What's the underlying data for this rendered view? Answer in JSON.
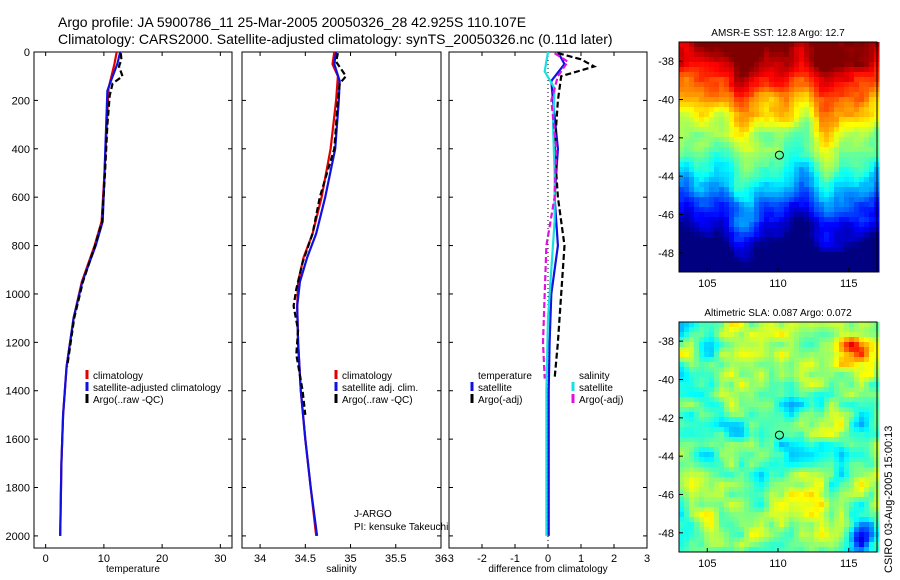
{
  "header": {
    "line1": "Argo profile: JA 5900786_11 25-Mar-2005 20050326_28 42.925S 110.107E",
    "line2": "Climatology: CARS2000. Satellite-adjusted climatology: synTS_20050326.nc (0.11d later)"
  },
  "credit": "CSIRO 03-Aug-2005 15:00:13",
  "colors": {
    "red": "#e00000",
    "blue": "#1010e0",
    "black": "#000000",
    "cyan": "#18e0e0",
    "magenta": "#e010e0"
  },
  "chart_data": [
    {
      "type": "line",
      "id": "temperature",
      "xlabel": "temperature",
      "ylabel": "",
      "xlim": [
        -2,
        32
      ],
      "ylim": [
        0,
        2050
      ],
      "y_inverted": true,
      "xticks": [
        0,
        10,
        20,
        30
      ],
      "yticks": [
        0,
        200,
        400,
        600,
        800,
        1000,
        1200,
        1400,
        1600,
        1800,
        2000
      ],
      "legend": {
        "position": "lower-right",
        "entries": [
          {
            "label": "climatology",
            "color": "#e00000"
          },
          {
            "label": "satellite-adjusted climatology",
            "color": "#1010e0"
          },
          {
            "label": "Argo(..raw -QC)",
            "color": "#000000"
          }
        ]
      },
      "series": [
        {
          "name": "climatology",
          "color": "#e00000",
          "dash": "",
          "points": [
            [
              12.2,
              0
            ],
            [
              11.8,
              50
            ],
            [
              11.1,
              120
            ],
            [
              10.8,
              150
            ],
            [
              10.5,
              300
            ],
            [
              10.1,
              500
            ],
            [
              9.6,
              700
            ],
            [
              8.4,
              800
            ],
            [
              6.2,
              950
            ],
            [
              4.8,
              1100
            ],
            [
              3.6,
              1300
            ],
            [
              3.0,
              1500
            ],
            [
              2.7,
              1700
            ],
            [
              2.5,
              2000
            ]
          ]
        },
        {
          "name": "satellite-adjusted climatology",
          "color": "#1010e0",
          "dash": "",
          "points": [
            [
              12.8,
              0
            ],
            [
              12.3,
              50
            ],
            [
              11.2,
              120
            ],
            [
              10.6,
              160
            ],
            [
              10.4,
              300
            ],
            [
              10.1,
              500
            ],
            [
              9.8,
              700
            ],
            [
              8.6,
              800
            ],
            [
              6.3,
              950
            ],
            [
              4.8,
              1100
            ],
            [
              3.6,
              1300
            ],
            [
              3.0,
              1500
            ],
            [
              2.7,
              1700
            ],
            [
              2.5,
              2000
            ]
          ]
        },
        {
          "name": "Argo(..raw -QC)",
          "color": "#000000",
          "dash": "6,3",
          "points": [
            [
              12.9,
              5
            ],
            [
              13.0,
              30
            ],
            [
              12.6,
              60
            ],
            [
              13.2,
              100
            ],
            [
              11.5,
              130
            ],
            [
              11.0,
              180
            ],
            [
              10.6,
              300
            ],
            [
              10.2,
              500
            ],
            [
              9.7,
              700
            ],
            [
              8.5,
              800
            ],
            [
              6.4,
              950
            ],
            [
              4.9,
              1100
            ],
            [
              3.7,
              1300
            ]
          ]
        }
      ]
    },
    {
      "type": "line",
      "id": "salinity",
      "xlabel": "salinity",
      "ylabel": "",
      "xlim": [
        33.8,
        36.0
      ],
      "ylim": [
        0,
        2050
      ],
      "y_inverted": true,
      "xticks": [
        34,
        34.5,
        35,
        35.5,
        36
      ],
      "xticklabels": [
        "34",
        "34.5",
        "35",
        "35.5",
        "36"
      ],
      "legend": {
        "position": "lower-right",
        "entries": [
          {
            "label": "climatology",
            "color": "#e00000"
          },
          {
            "label": "satellite adj. clim.",
            "color": "#1010e0"
          },
          {
            "label": "Argo(..raw -QC)",
            "color": "#000000"
          }
        ]
      },
      "annotations": [
        "J-ARGO",
        "PI: kensuke Takeuchi"
      ],
      "series": [
        {
          "name": "climatology",
          "color": "#e00000",
          "dash": "",
          "points": [
            [
              34.82,
              0
            ],
            [
              34.8,
              50
            ],
            [
              34.86,
              100
            ],
            [
              34.84,
              200
            ],
            [
              34.78,
              400
            ],
            [
              34.68,
              600
            ],
            [
              34.58,
              750
            ],
            [
              34.48,
              850
            ],
            [
              34.42,
              950
            ],
            [
              34.41,
              1050
            ],
            [
              34.42,
              1200
            ],
            [
              34.45,
              1400
            ],
            [
              34.5,
              1600
            ],
            [
              34.56,
              1800
            ],
            [
              34.62,
              2000
            ]
          ]
        },
        {
          "name": "satellite adj. clim.",
          "color": "#1010e0",
          "dash": "",
          "points": [
            [
              34.84,
              0
            ],
            [
              34.82,
              50
            ],
            [
              34.88,
              120
            ],
            [
              34.87,
              200
            ],
            [
              34.83,
              400
            ],
            [
              34.72,
              600
            ],
            [
              34.62,
              750
            ],
            [
              34.52,
              850
            ],
            [
              34.44,
              950
            ],
            [
              34.41,
              1050
            ],
            [
              34.42,
              1200
            ],
            [
              34.45,
              1400
            ],
            [
              34.5,
              1600
            ],
            [
              34.56,
              1800
            ],
            [
              34.63,
              2000
            ]
          ]
        },
        {
          "name": "Argo(..raw -QC)",
          "color": "#000000",
          "dash": "6,3",
          "points": [
            [
              34.86,
              5
            ],
            [
              34.84,
              40
            ],
            [
              34.95,
              100
            ],
            [
              34.88,
              130
            ],
            [
              34.86,
              200
            ],
            [
              34.82,
              400
            ],
            [
              34.66,
              600
            ],
            [
              34.58,
              750
            ],
            [
              34.47,
              870
            ],
            [
              34.4,
              980
            ],
            [
              34.37,
              1050
            ],
            [
              34.42,
              1150
            ],
            [
              34.4,
              1250
            ],
            [
              34.47,
              1400
            ],
            [
              34.5,
              1500
            ]
          ]
        }
      ]
    },
    {
      "type": "line",
      "id": "difference",
      "xlabel": "difference from climatology",
      "ylabel": "",
      "xlim": [
        -3,
        3
      ],
      "ylim": [
        0,
        2050
      ],
      "y_inverted": true,
      "xticks": [
        -3,
        -2,
        -1,
        0,
        1,
        2,
        3
      ],
      "legend": {
        "position": "lower-center",
        "entries": [
          {
            "label": "temperature",
            "color": ""
          },
          {
            "label": "satellite",
            "color": "#1010e0"
          },
          {
            "label": "Argo(-adj)",
            "color": "#000000"
          },
          {
            "label": "salinity",
            "color": ""
          },
          {
            "label": "satellite",
            "color": "#18e0e0"
          },
          {
            "label": "Argo(-adj)",
            "color": "#e010e0"
          }
        ]
      },
      "series": [
        {
          "name": "temperature satellite",
          "color": "#1010e0",
          "dash": "",
          "points": [
            [
              0.3,
              0
            ],
            [
              0.5,
              50
            ],
            [
              0.1,
              120
            ],
            [
              0.15,
              200
            ],
            [
              0.3,
              400
            ],
            [
              0.2,
              600
            ],
            [
              0.3,
              800
            ],
            [
              0.1,
              1000
            ],
            [
              0.05,
              1200
            ],
            [
              0.02,
              1400
            ],
            [
              0.02,
              1700
            ],
            [
              0.02,
              2000
            ]
          ]
        },
        {
          "name": "temperature Argo(-adj)",
          "color": "#000000",
          "dash": "6,3",
          "points": [
            [
              0.3,
              5
            ],
            [
              1.0,
              30
            ],
            [
              1.4,
              60
            ],
            [
              0.4,
              100
            ],
            [
              0.3,
              200
            ],
            [
              0.2,
              400
            ],
            [
              0.3,
              600
            ],
            [
              0.5,
              800
            ],
            [
              0.4,
              1000
            ],
            [
              0.3,
              1200
            ],
            [
              0.2,
              1350
            ]
          ]
        },
        {
          "name": "salinity satellite",
          "color": "#18e0e0",
          "dash": "",
          "points": [
            [
              0.0,
              0
            ],
            [
              -0.1,
              80
            ],
            [
              0.2,
              150
            ],
            [
              0.15,
              300
            ],
            [
              0.2,
              500
            ],
            [
              0.2,
              700
            ],
            [
              0.1,
              900
            ],
            [
              0.0,
              1100
            ],
            [
              -0.05,
              1400
            ],
            [
              -0.05,
              1700
            ],
            [
              -0.05,
              2000
            ]
          ]
        },
        {
          "name": "salinity Argo(-adj)",
          "color": "#e010e0",
          "dash": "6,3",
          "points": [
            [
              0.2,
              5
            ],
            [
              0.6,
              40
            ],
            [
              0.3,
              100
            ],
            [
              0.1,
              200
            ],
            [
              0.25,
              400
            ],
            [
              0.2,
              600
            ],
            [
              -0.05,
              800
            ],
            [
              -0.1,
              1000
            ],
            [
              -0.15,
              1200
            ],
            [
              -0.1,
              1350
            ]
          ]
        }
      ]
    },
    {
      "type": "heatmap",
      "id": "sst-map",
      "title": "AMSR-E SST: 12.8 Argo: 12.7",
      "xlim": [
        103,
        117
      ],
      "ylim": [
        -49,
        -37
      ],
      "xticks": [
        105,
        110,
        115
      ],
      "yticks": [
        -38,
        -40,
        -42,
        -44,
        -46,
        -48
      ],
      "marker": {
        "x": 110.1,
        "y": -42.9
      }
    },
    {
      "type": "heatmap",
      "id": "sla-map",
      "title": "Altimetric SLA: 0.087 Argo: 0.072",
      "xlim": [
        103,
        117
      ],
      "ylim": [
        -49,
        -37
      ],
      "xticks": [
        105,
        110,
        115
      ],
      "yticks": [
        -38,
        -40,
        -42,
        -44,
        -46,
        -48
      ],
      "marker": {
        "x": 110.1,
        "y": -42.9
      }
    }
  ]
}
